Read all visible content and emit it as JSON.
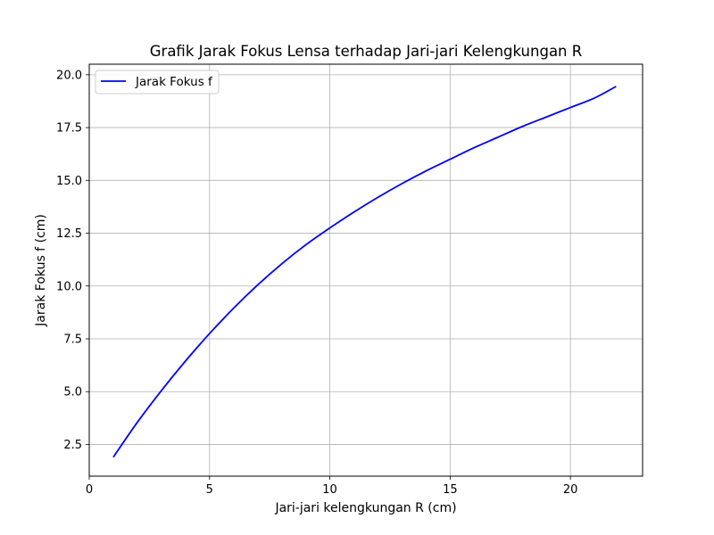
{
  "chart_data": {
    "type": "line",
    "title": "Grafik Jarak Fokus Lensa terhadap Jari-jari Kelengkungan R",
    "xlabel": "Jari-jari kelengkungan R (cm)",
    "ylabel": "Jarak Fokus f (cm)",
    "xlim": [
      0,
      23
    ],
    "ylim": [
      1.0,
      20.5
    ],
    "xticks": [
      0,
      5,
      10,
      15,
      20
    ],
    "xtick_labels": [
      "0",
      "5",
      "10",
      "15",
      "20"
    ],
    "yticks": [
      2.5,
      5.0,
      7.5,
      10.0,
      12.5,
      15.0,
      17.5,
      20.0
    ],
    "ytick_labels": [
      "2.5",
      "5.0",
      "7.5",
      "10.0",
      "12.5",
      "15.0",
      "17.5",
      "20.0"
    ],
    "grid": true,
    "legend_position": "top-left",
    "series": [
      {
        "name": "Jarak Fokus f",
        "color": "#0000ff",
        "x": [
          1,
          2,
          3,
          4,
          5,
          6,
          7,
          8,
          9,
          10,
          11,
          12,
          13,
          14,
          15,
          16,
          17,
          18,
          19,
          20,
          21,
          21.9
        ],
        "y": [
          1.9,
          3.55,
          5.05,
          6.45,
          7.75,
          8.95,
          10.05,
          11.05,
          11.95,
          12.75,
          13.5,
          14.2,
          14.85,
          15.45,
          16.0,
          16.55,
          17.05,
          17.55,
          18.0,
          18.45,
          18.9,
          19.45
        ]
      }
    ]
  }
}
